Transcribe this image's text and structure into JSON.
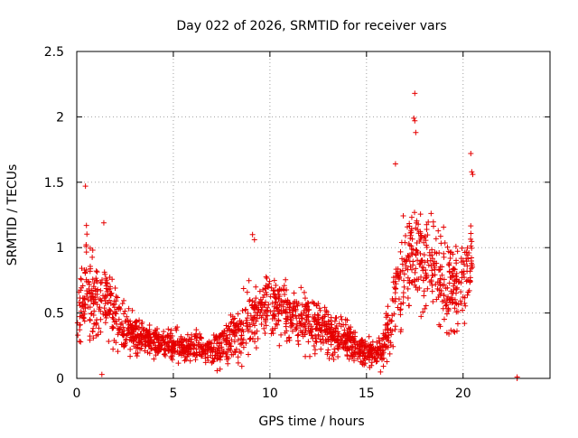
{
  "chart_data": {
    "type": "scatter",
    "title": "Day 022 of 2026, SRMTID for receiver vars",
    "xlabel": "GPS time / hours",
    "ylabel": "SRMTID / TECUs",
    "xlim": [
      0,
      24.5
    ],
    "ylim": [
      0,
      2.5
    ],
    "x_ticks": [
      0,
      5,
      10,
      15,
      20
    ],
    "y_ticks": [
      0,
      0.5,
      1,
      1.5,
      2,
      2.5
    ],
    "x_tick_labels": [
      "0",
      "5",
      "10",
      "15",
      "20"
    ],
    "y_tick_labels": [
      "0",
      "0.5",
      "1",
      "1.5",
      "2",
      "2.5"
    ],
    "grid": true,
    "marker": "+",
    "colors": {
      "marker": "#e60000",
      "grid": "#a0a0a0",
      "axes": "#000000"
    },
    "series": [
      {
        "name": "SRMTID",
        "profile_x": [
          0,
          0.5,
          1,
          1.5,
          2,
          2.5,
          3,
          4,
          5,
          6,
          7,
          8,
          9,
          10,
          11,
          12,
          13,
          14,
          15,
          15.8,
          16.3,
          17,
          17.5,
          18,
          18.5,
          19,
          19.5,
          20,
          20.5
        ],
        "profile_y": [
          0.5,
          0.7,
          0.55,
          0.6,
          0.45,
          0.4,
          0.32,
          0.28,
          0.25,
          0.24,
          0.22,
          0.3,
          0.45,
          0.55,
          0.5,
          0.45,
          0.35,
          0.3,
          0.2,
          0.2,
          0.5,
          0.85,
          0.95,
          0.9,
          0.85,
          0.75,
          0.65,
          0.75,
          0.9
        ],
        "spread_y": [
          0.3,
          0.4,
          0.3,
          0.3,
          0.25,
          0.2,
          0.15,
          0.12,
          0.12,
          0.12,
          0.12,
          0.2,
          0.28,
          0.25,
          0.22,
          0.22,
          0.2,
          0.15,
          0.1,
          0.12,
          0.3,
          0.4,
          0.45,
          0.45,
          0.4,
          0.4,
          0.35,
          0.35,
          0.35
        ],
        "sample_count": 1900,
        "outliers": [
          {
            "x": 0.45,
            "y": 1.47
          },
          {
            "x": 0.5,
            "y": 1.17
          },
          {
            "x": 1.4,
            "y": 1.19
          },
          {
            "x": 1.3,
            "y": 0.03
          },
          {
            "x": 9.1,
            "y": 1.1
          },
          {
            "x": 9.2,
            "y": 1.06
          },
          {
            "x": 16.5,
            "y": 1.64
          },
          {
            "x": 17.5,
            "y": 2.18
          },
          {
            "x": 17.45,
            "y": 1.99
          },
          {
            "x": 17.5,
            "y": 1.97
          },
          {
            "x": 17.55,
            "y": 1.88
          },
          {
            "x": 20.4,
            "y": 1.72
          },
          {
            "x": 20.45,
            "y": 1.58
          },
          {
            "x": 20.5,
            "y": 1.56
          },
          {
            "x": 22.8,
            "y": 0.01
          },
          {
            "x": 22.8,
            "y": 0.0
          }
        ]
      }
    ]
  }
}
